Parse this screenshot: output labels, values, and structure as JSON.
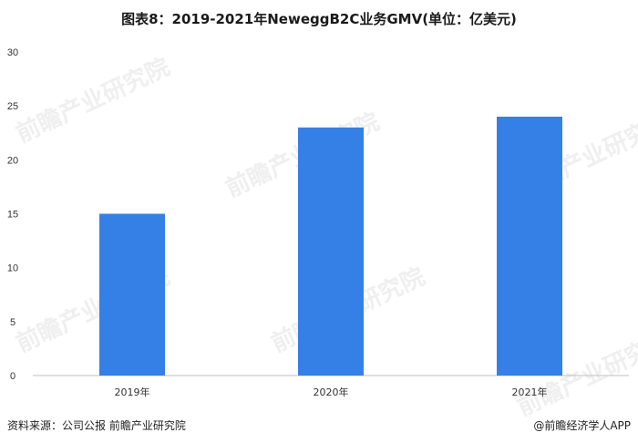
{
  "header": {
    "title": "图表8：2019-2021年NeweggB2C业务GMV(单位：亿美元)"
  },
  "footer": {
    "source": "资料来源：公司公报 前瞻产业研究院",
    "brand": "@前瞻经济学人APP"
  },
  "watermark": {
    "text": "前瞻产业研究院"
  },
  "colors": {
    "bar": "#3580E6",
    "axis": "#bfbfbf",
    "text": "#333333"
  },
  "chart_data": {
    "type": "bar",
    "categories": [
      "2019年",
      "2020年",
      "2021年"
    ],
    "values": [
      15,
      23,
      24
    ],
    "title": "图表8：2019-2021年NeweggB2C业务GMV(单位：亿美元)",
    "xlabel": "",
    "ylabel": "",
    "ylim": [
      0,
      30
    ],
    "yticks": [
      0,
      5,
      10,
      15,
      20,
      25,
      30
    ],
    "grid": false
  }
}
